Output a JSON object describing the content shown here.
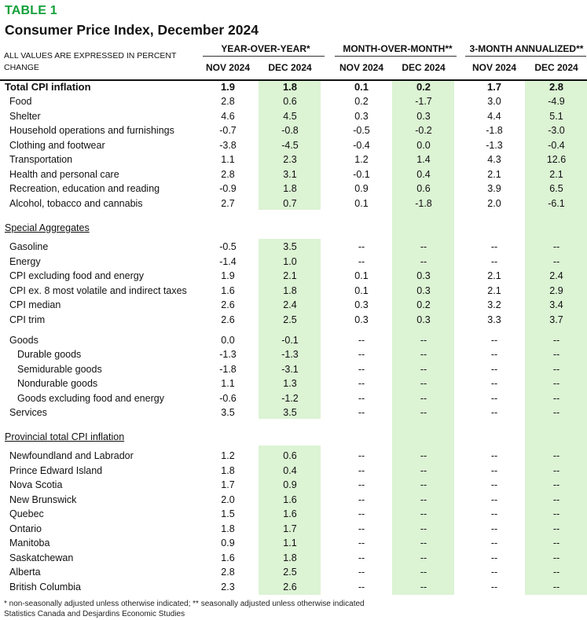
{
  "header": {
    "table_label": "TABLE 1",
    "title": "Consumer Price Index, December 2024",
    "note": "ALL VALUES ARE EXPRESSED IN PERCENT CHANGE"
  },
  "column_groups": [
    "YEAR-OVER-YEAR*",
    "MONTH-OVER-MONTH**",
    "3-MONTH ANNUALIZED**"
  ],
  "column_headers": [
    "NOV 2024",
    "DEC 2024",
    "NOV 2024",
    "DEC 2024",
    "NOV 2024",
    "DEC 2024"
  ],
  "highlight_color": "#dcf3d4",
  "title_color": "#12a03a",
  "sections": {
    "main": {
      "rows": [
        {
          "label": "Total CPI inflation",
          "values": [
            "1.9",
            "1.8",
            "0.1",
            "0.2",
            "1.7",
            "2.8"
          ],
          "bold": true
        },
        {
          "label": "Food",
          "values": [
            "2.8",
            "0.6",
            "0.2",
            "-1.7",
            "3.0",
            "-4.9"
          ]
        },
        {
          "label": "Shelter",
          "values": [
            "4.6",
            "4.5",
            "0.3",
            "0.3",
            "4.4",
            "5.1"
          ]
        },
        {
          "label": "Household operations and furnishings",
          "values": [
            "-0.7",
            "-0.8",
            "-0.5",
            "-0.2",
            "-1.8",
            "-3.0"
          ]
        },
        {
          "label": "Clothing and footwear",
          "values": [
            "-3.8",
            "-4.5",
            "-0.4",
            "0.0",
            "-1.3",
            "-0.4"
          ]
        },
        {
          "label": "Transportation",
          "values": [
            "1.1",
            "2.3",
            "1.2",
            "1.4",
            "4.3",
            "12.6"
          ]
        },
        {
          "label": "Health and personal care",
          "values": [
            "2.8",
            "3.1",
            "-0.1",
            "0.4",
            "2.1",
            "2.1"
          ]
        },
        {
          "label": "Recreation, education and reading",
          "values": [
            "-0.9",
            "1.8",
            "0.9",
            "0.6",
            "3.9",
            "6.5"
          ]
        },
        {
          "label": "Alcohol, tobacco and cannabis",
          "values": [
            "2.7",
            "0.7",
            "0.1",
            "-1.8",
            "2.0",
            "-6.1"
          ]
        }
      ]
    },
    "special": {
      "title": "Special Aggregates",
      "rows": [
        {
          "label": "Gasoline",
          "values": [
            "-0.5",
            "3.5",
            "--",
            "--",
            "--",
            "--"
          ]
        },
        {
          "label": "Energy",
          "values": [
            "-1.4",
            "1.0",
            "--",
            "--",
            "--",
            "--"
          ]
        },
        {
          "label": "CPI excluding food and energy",
          "values": [
            "1.9",
            "2.1",
            "0.1",
            "0.3",
            "2.1",
            "2.4"
          ]
        },
        {
          "label": "CPI ex. 8 most volatile and indirect taxes",
          "values": [
            "1.6",
            "1.8",
            "0.1",
            "0.3",
            "2.1",
            "2.9"
          ]
        },
        {
          "label": "CPI median",
          "values": [
            "2.6",
            "2.4",
            "0.3",
            "0.2",
            "3.2",
            "3.4"
          ]
        },
        {
          "label": "CPI trim",
          "values": [
            "2.6",
            "2.5",
            "0.3",
            "0.3",
            "3.3",
            "3.7"
          ]
        },
        {
          "label": "Goods",
          "values": [
            "0.0",
            "-0.1",
            "--",
            "--",
            "--",
            "--"
          ]
        },
        {
          "label": "Durable goods",
          "values": [
            "-1.3",
            "-1.3",
            "--",
            "--",
            "--",
            "--"
          ]
        },
        {
          "label": "Semidurable goods",
          "values": [
            "-1.8",
            "-3.1",
            "--",
            "--",
            "--",
            "--"
          ]
        },
        {
          "label": "Nondurable goods",
          "values": [
            "1.1",
            "1.3",
            "--",
            "--",
            "--",
            "--"
          ]
        },
        {
          "label": "Goods excluding food and energy",
          "values": [
            "-0.6",
            "-1.2",
            "--",
            "--",
            "--",
            "--"
          ]
        },
        {
          "label": "Services",
          "values": [
            "3.5",
            "3.5",
            "--",
            "--",
            "--",
            "--"
          ]
        }
      ]
    },
    "provincial": {
      "title": "Provincial total CPI inflation",
      "rows": [
        {
          "label": "Newfoundland and Labrador",
          "values": [
            "1.2",
            "0.6",
            "--",
            "--",
            "--",
            "--"
          ]
        },
        {
          "label": "Prince Edward Island",
          "values": [
            "1.8",
            "0.4",
            "--",
            "--",
            "--",
            "--"
          ]
        },
        {
          "label": "Nova Scotia",
          "values": [
            "1.7",
            "0.9",
            "--",
            "--",
            "--",
            "--"
          ]
        },
        {
          "label": "New Brunswick",
          "values": [
            "2.0",
            "1.6",
            "--",
            "--",
            "--",
            "--"
          ]
        },
        {
          "label": "Quebec",
          "values": [
            "1.5",
            "1.6",
            "--",
            "--",
            "--",
            "--"
          ]
        },
        {
          "label": "Ontario",
          "values": [
            "1.8",
            "1.7",
            "--",
            "--",
            "--",
            "--"
          ]
        },
        {
          "label": "Manitoba",
          "values": [
            "0.9",
            "1.1",
            "--",
            "--",
            "--",
            "--"
          ]
        },
        {
          "label": "Saskatchewan",
          "values": [
            "1.6",
            "1.8",
            "--",
            "--",
            "--",
            "--"
          ]
        },
        {
          "label": "Alberta",
          "values": [
            "2.8",
            "2.5",
            "--",
            "--",
            "--",
            "--"
          ]
        },
        {
          "label": "British Columbia",
          "values": [
            "2.3",
            "2.6",
            "--",
            "--",
            "--",
            "--"
          ]
        }
      ]
    }
  },
  "footnotes": [
    "* non-seasonally adjusted unless otherwise indicated; ** seasonally adjusted unless otherwise indicated",
    "Statistics Canada and Desjardins Economic Studies"
  ]
}
